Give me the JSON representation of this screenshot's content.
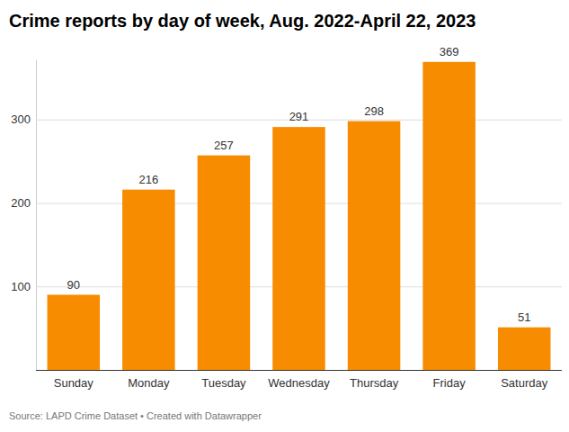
{
  "chart_data": {
    "type": "bar",
    "title": "Crime reports by day of week, Aug. 2022-April 22, 2023",
    "source": "Source: LAPD Crime Dataset • Created with Datawrapper",
    "categories": [
      "Sunday",
      "Monday",
      "Tuesday",
      "Wednesday",
      "Thursday",
      "Friday",
      "Saturday"
    ],
    "values": [
      90,
      216,
      257,
      291,
      298,
      369,
      51
    ],
    "color": "#f78c00",
    "ylim": [
      0,
      372
    ],
    "yticks": [
      100,
      200,
      300
    ],
    "grid": true,
    "data_labels": true
  }
}
